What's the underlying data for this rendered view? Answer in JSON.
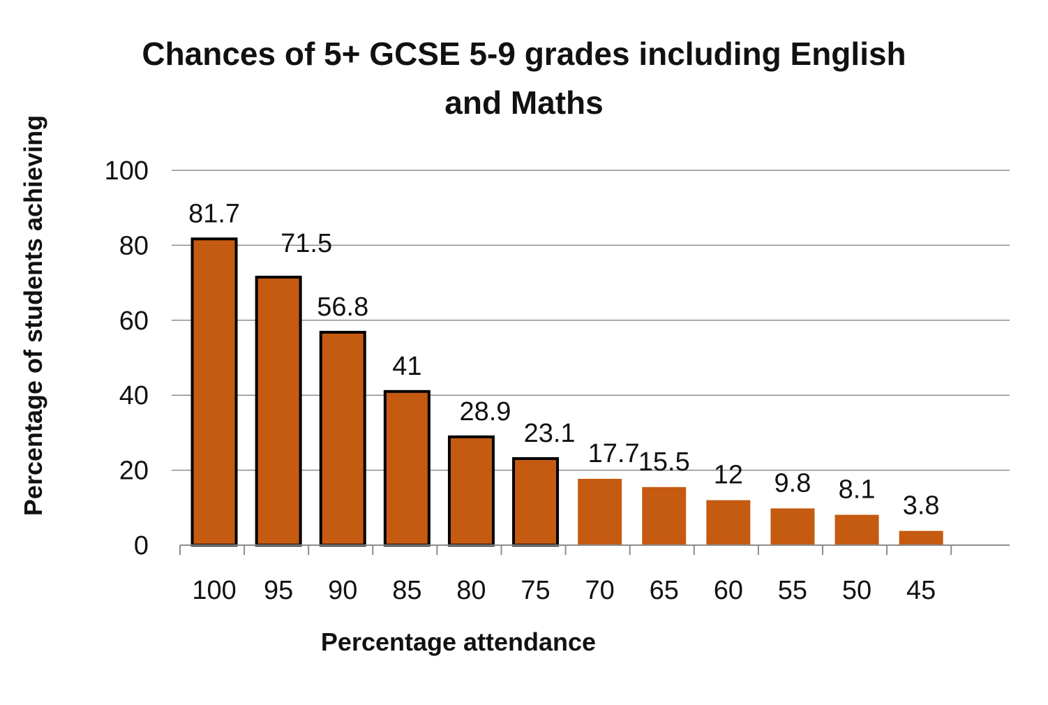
{
  "chart_data": {
    "type": "bar",
    "title_lines": [
      "Chances of 5+ GCSE 5-9 grades including English",
      "and Maths"
    ],
    "xlabel": "Percentage attendance",
    "ylabel": "Percentage of students achieving",
    "categories": [
      "100",
      "95",
      "90",
      "85",
      "80",
      "75",
      "70",
      "65",
      "60",
      "55",
      "50",
      "45"
    ],
    "values": [
      81.7,
      71.5,
      56.8,
      41,
      28.9,
      23.1,
      17.7,
      15.5,
      12,
      9.8,
      8.1,
      3.8
    ],
    "data_labels": [
      "81.7",
      "71.5",
      "56.8",
      "41",
      "28.9",
      "23.1",
      "17.7",
      "15.5",
      "12",
      "9.8",
      "8.1",
      "3.8"
    ],
    "y_ticks": [
      0,
      20,
      40,
      60,
      80,
      100
    ],
    "ylim": [
      0,
      100
    ],
    "grid": true,
    "legend": "none",
    "bar_color": "#C55A11",
    "outlined_bar_count": 6
  }
}
